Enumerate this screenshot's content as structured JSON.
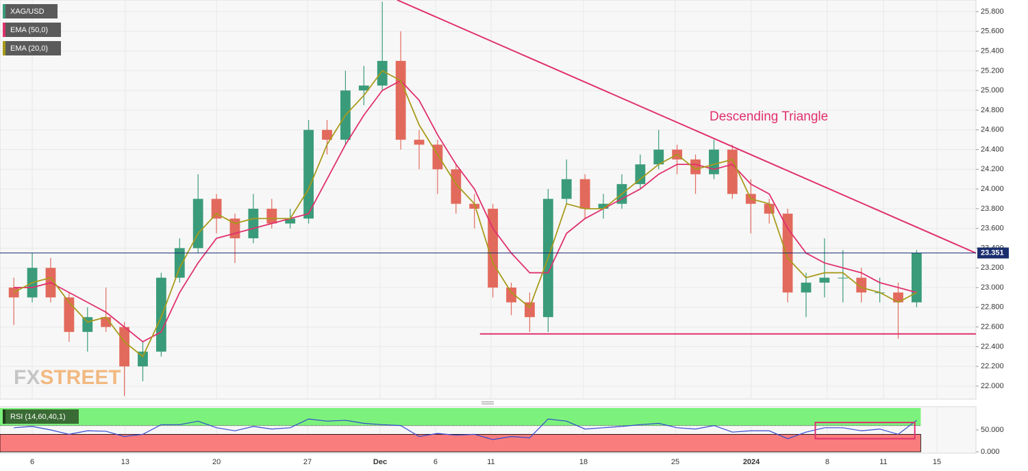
{
  "chart_data": {
    "type": "candlestick",
    "symbol": "XAG/USD",
    "up_color": "#3a9b7a",
    "down_color": "#e26a5c",
    "grid": true,
    "x": [
      -1,
      0,
      1,
      2,
      3,
      4,
      5,
      6,
      7,
      8,
      9,
      10,
      11,
      12,
      13,
      14,
      15,
      16,
      17,
      18,
      19,
      20,
      21,
      22,
      23,
      24,
      25,
      26,
      27,
      28,
      29,
      30,
      31,
      32,
      33,
      34,
      35,
      36,
      37,
      38,
      39,
      40,
      41,
      42,
      43,
      44,
      45,
      46,
      47,
      48
    ],
    "ohlc": [
      [
        23.0,
        23.1,
        22.62,
        22.9
      ],
      [
        22.9,
        23.35,
        22.85,
        23.2
      ],
      [
        23.2,
        23.3,
        22.85,
        22.9
      ],
      [
        22.9,
        22.95,
        22.45,
        22.55
      ],
      [
        22.55,
        22.8,
        22.35,
        22.7
      ],
      [
        22.7,
        23.0,
        22.55,
        22.6
      ],
      [
        22.6,
        22.65,
        21.9,
        22.2
      ],
      [
        22.2,
        22.45,
        22.05,
        22.35
      ],
      [
        22.35,
        23.15,
        22.3,
        23.1
      ],
      [
        23.1,
        23.5,
        23.05,
        23.4
      ],
      [
        23.4,
        24.15,
        23.35,
        23.9
      ],
      [
        23.9,
        23.95,
        23.55,
        23.7
      ],
      [
        23.7,
        23.75,
        23.25,
        23.5
      ],
      [
        23.5,
        23.95,
        23.45,
        23.8
      ],
      [
        23.8,
        23.9,
        23.6,
        23.65
      ],
      [
        23.65,
        23.8,
        23.6,
        23.7
      ],
      [
        23.7,
        24.7,
        23.65,
        24.6
      ],
      [
        24.6,
        24.7,
        24.35,
        24.5
      ],
      [
        24.5,
        25.2,
        24.45,
        25.0
      ],
      [
        25.0,
        25.25,
        24.85,
        25.05
      ],
      [
        25.05,
        25.9,
        25.0,
        25.3
      ],
      [
        25.3,
        25.6,
        24.4,
        24.5
      ],
      [
        24.5,
        24.6,
        24.2,
        24.45
      ],
      [
        24.45,
        24.5,
        23.95,
        24.2
      ],
      [
        24.2,
        24.25,
        23.75,
        23.85
      ],
      [
        23.85,
        23.95,
        23.6,
        23.8
      ],
      [
        23.8,
        23.85,
        22.9,
        23.0
      ],
      [
        23.0,
        23.05,
        22.72,
        22.85
      ],
      [
        22.85,
        22.95,
        22.55,
        22.7
      ],
      [
        22.7,
        24.0,
        22.55,
        23.9
      ],
      [
        23.9,
        24.3,
        23.85,
        24.1
      ],
      [
        24.1,
        24.15,
        23.7,
        23.8
      ],
      [
        23.8,
        23.95,
        23.7,
        23.85
      ],
      [
        23.85,
        24.15,
        23.8,
        24.05
      ],
      [
        24.05,
        24.35,
        24.0,
        24.25
      ],
      [
        24.25,
        24.6,
        24.2,
        24.4
      ],
      [
        24.4,
        24.45,
        24.15,
        24.3
      ],
      [
        24.3,
        24.35,
        23.95,
        24.15
      ],
      [
        24.15,
        24.5,
        24.1,
        24.4
      ],
      [
        24.4,
        24.45,
        23.9,
        23.95
      ],
      [
        23.95,
        24.1,
        23.55,
        23.85
      ],
      [
        23.85,
        23.9,
        23.65,
        23.75
      ],
      [
        23.75,
        23.8,
        22.85,
        22.95
      ],
      [
        22.95,
        23.15,
        22.7,
        23.05
      ],
      [
        23.05,
        23.5,
        22.9,
        23.1
      ],
      [
        23.1,
        23.38,
        22.85,
        23.1
      ],
      [
        23.1,
        23.2,
        22.85,
        22.95
      ],
      [
        22.95,
        23.1,
        22.85,
        22.95
      ],
      [
        22.95,
        23.05,
        22.48,
        22.85
      ],
      [
        22.85,
        23.38,
        22.8,
        23.35
      ]
    ],
    "series": [
      {
        "name": "EMA (50,0)",
        "color": "#e0306e",
        "values": [
          23.0,
          23.0,
          23.05,
          22.95,
          22.85,
          22.75,
          22.6,
          22.45,
          22.55,
          22.95,
          23.25,
          23.5,
          23.55,
          23.6,
          23.65,
          23.7,
          23.75,
          24.1,
          24.45,
          24.75,
          25.0,
          25.1,
          24.9,
          24.55,
          24.25,
          24.0,
          23.6,
          23.35,
          23.15,
          23.15,
          23.55,
          23.7,
          23.8,
          23.9,
          24.0,
          24.15,
          24.25,
          24.25,
          24.2,
          24.25,
          24.05,
          23.95,
          23.6,
          23.35,
          23.25,
          23.2,
          23.15,
          23.05,
          23.0,
          22.95
        ]
      },
      {
        "name": "EMA (20,0)",
        "color": "#a89a1a",
        "values": [
          22.95,
          23.05,
          23.1,
          22.85,
          22.65,
          22.7,
          22.45,
          22.3,
          22.7,
          23.2,
          23.55,
          23.75,
          23.65,
          23.7,
          23.7,
          23.7,
          24.0,
          24.45,
          24.75,
          24.95,
          25.2,
          25.1,
          24.65,
          24.35,
          24.05,
          23.85,
          23.25,
          22.95,
          22.8,
          23.3,
          23.85,
          23.8,
          23.8,
          23.95,
          24.1,
          24.25,
          24.35,
          24.2,
          24.25,
          24.3,
          23.9,
          23.85,
          23.3,
          23.1,
          23.15,
          23.15,
          23.0,
          22.95,
          22.85,
          22.95
        ]
      }
    ],
    "xlim": [
      -1.75,
      51.22
    ],
    "ylim": [
      21.868,
      25.918
    ],
    "xticks": [
      {
        "value": 0,
        "label": "6"
      },
      {
        "value": 5.05,
        "label": "13"
      },
      {
        "value": 10.0,
        "label": "20"
      },
      {
        "value": 14.94,
        "label": "27"
      },
      {
        "value": 18.88,
        "label": "Dec"
      },
      {
        "value": 21.89,
        "label": "6"
      },
      {
        "value": 24.9,
        "label": "11"
      },
      {
        "value": 29.92,
        "label": "18"
      },
      {
        "value": 34.9,
        "label": "25"
      },
      {
        "value": 39.03,
        "label": "2024"
      },
      {
        "value": 43.15,
        "label": "8"
      },
      {
        "value": 46.2,
        "label": "11"
      },
      {
        "value": 49.1,
        "label": "15"
      }
    ],
    "yticks": [
      {
        "value": 22.0,
        "label": "22.000"
      },
      {
        "value": 22.2,
        "label": "22.200"
      },
      {
        "value": 22.4,
        "label": "22.400"
      },
      {
        "value": 22.6,
        "label": "22.600"
      },
      {
        "value": 22.8,
        "label": "22.800"
      },
      {
        "value": 23.0,
        "label": "23.000"
      },
      {
        "value": 23.2,
        "label": "23.200"
      },
      {
        "value": 23.4,
        "label": "23.400"
      },
      {
        "value": 23.6,
        "label": "23.600"
      },
      {
        "value": 23.8,
        "label": "23.800"
      },
      {
        "value": 24.0,
        "label": "24.000"
      },
      {
        "value": 24.2,
        "label": "24.200"
      },
      {
        "value": 24.4,
        "label": "24.400"
      },
      {
        "value": 24.6,
        "label": "24.600"
      },
      {
        "value": 24.8,
        "label": "24.800"
      },
      {
        "value": 25.0,
        "label": "25.000"
      },
      {
        "value": 25.2,
        "label": "25.200"
      },
      {
        "value": 25.4,
        "label": "25.400"
      },
      {
        "value": 25.6,
        "label": "25.600"
      },
      {
        "value": 25.8,
        "label": "25.800"
      }
    ],
    "last_price": 23.351,
    "last_price_color": "#1a2e6e",
    "trendline_color": "#e0306e",
    "trendlines": [
      {
        "x": [
          19.81,
          51.22
        ],
        "y": [
          25.918,
          23.35
        ]
      },
      {
        "x": [
          24.3,
          51.22
        ],
        "y": [
          22.53,
          22.53
        ]
      }
    ],
    "annotation": "Descending Triangle",
    "watermark": {
      "part1": "FX",
      "part2": "STREET"
    },
    "rsi": {
      "name": "RSI (14,60,40,1)",
      "color": "#3348d0",
      "values": [
        55,
        58,
        50,
        40,
        48,
        47,
        35,
        40,
        62,
        62,
        70,
        55,
        48,
        58,
        52,
        55,
        75,
        70,
        72,
        65,
        62,
        60,
        35,
        42,
        38,
        40,
        28,
        35,
        32,
        75,
        70,
        52,
        55,
        58,
        62,
        65,
        55,
        52,
        60,
        45,
        48,
        48,
        30,
        45,
        55,
        55,
        48,
        52,
        40,
        72
      ],
      "ylim": [
        0,
        100
      ],
      "yticks": [
        {
          "value": 50,
          "label": "50.000"
        },
        {
          "value": 0,
          "label": "0.000"
        }
      ],
      "upper": 60,
      "lower": 40,
      "upper_color": "#7cf27c",
      "lower_color": "#f97d7d",
      "highlight": {
        "x": [
          42.5,
          47.9
        ],
        "y": [
          30,
          67
        ]
      }
    }
  }
}
